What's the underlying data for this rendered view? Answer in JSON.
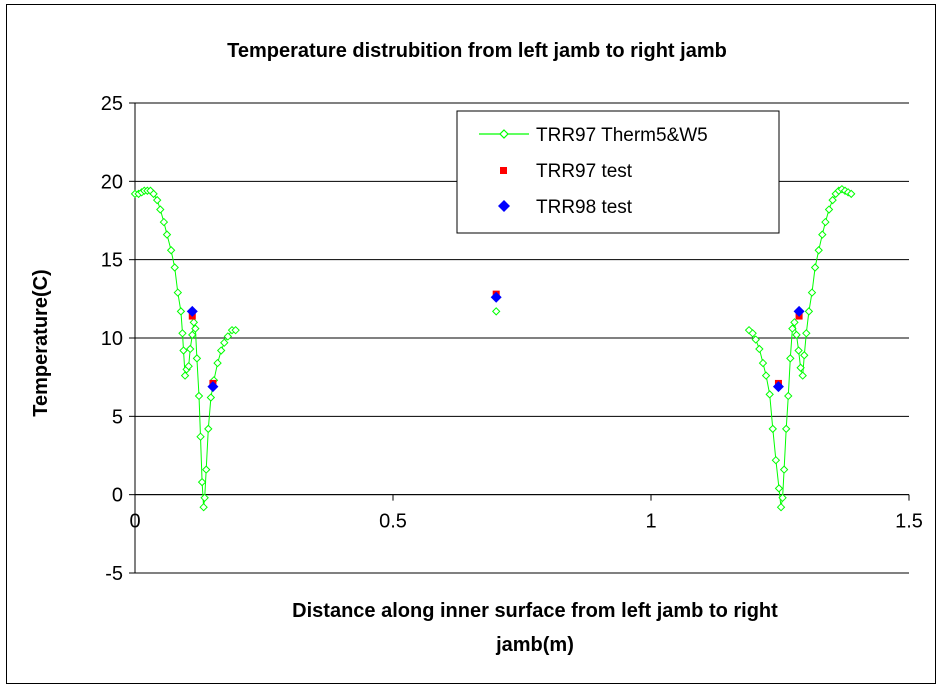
{
  "chart_data": {
    "type": "scatter",
    "title": "Temperature distrubition from left jamb to right jamb",
    "xlabel_line1": "Distance along inner surface from left jamb to right",
    "xlabel_line2": "jamb(m)",
    "ylabel": "Temperature(C)",
    "xlim": [
      0,
      1.5
    ],
    "ylim": [
      -5,
      25
    ],
    "xticks": [
      0,
      0.5,
      1,
      1.5
    ],
    "xtick_labels": [
      "0",
      "0.5",
      "1",
      "1.5"
    ],
    "yticks": [
      -5,
      0,
      5,
      10,
      15,
      20,
      25
    ],
    "ytick_labels": [
      "-5",
      "0",
      "5",
      "10",
      "15",
      "20",
      "25"
    ],
    "grid": "horizontal",
    "legend_position": "top-right",
    "colors": {
      "therm": "#00ff00",
      "trr97": "#ff0000",
      "trr98": "#0000ff"
    },
    "series": [
      {
        "name": "TRR97 Therm5&W5",
        "style": "line-open-diamond",
        "segments": [
          [
            [
              0.0,
              19.2
            ],
            [
              0.007,
              19.2
            ],
            [
              0.013,
              19.3
            ],
            [
              0.018,
              19.4
            ],
            [
              0.024,
              19.4
            ],
            [
              0.03,
              19.4
            ],
            [
              0.036,
              19.2
            ],
            [
              0.043,
              18.8
            ],
            [
              0.049,
              18.2
            ],
            [
              0.056,
              17.4
            ],
            [
              0.062,
              16.6
            ],
            [
              0.07,
              15.6
            ],
            [
              0.077,
              14.5
            ],
            [
              0.083,
              12.9
            ],
            [
              0.089,
              11.7
            ],
            [
              0.092,
              10.3
            ],
            [
              0.094,
              9.2
            ],
            [
              0.097,
              7.6
            ],
            [
              0.1,
              8.0
            ],
            [
              0.104,
              8.2
            ],
            [
              0.107,
              9.3
            ],
            [
              0.111,
              10.2
            ],
            [
              0.114,
              11.0
            ],
            [
              0.117,
              10.6
            ],
            [
              0.12,
              8.7
            ],
            [
              0.124,
              6.3
            ],
            [
              0.127,
              3.7
            ],
            [
              0.13,
              0.8
            ],
            [
              0.133,
              -0.8
            ],
            [
              0.135,
              -0.2
            ],
            [
              0.138,
              1.6
            ],
            [
              0.142,
              4.2
            ],
            [
              0.147,
              6.2
            ],
            [
              0.153,
              7.3
            ],
            [
              0.16,
              8.4
            ],
            [
              0.167,
              9.2
            ],
            [
              0.173,
              9.7
            ],
            [
              0.18,
              10.1
            ],
            [
              0.188,
              10.5
            ],
            [
              0.195,
              10.5
            ]
          ],
          [
            [
              0.7,
              11.7
            ]
          ],
          [
            [
              1.19,
              10.5
            ],
            [
              1.197,
              10.3
            ],
            [
              1.203,
              9.9
            ],
            [
              1.21,
              9.3
            ],
            [
              1.217,
              8.4
            ],
            [
              1.223,
              7.6
            ],
            [
              1.23,
              6.4
            ],
            [
              1.236,
              4.2
            ],
            [
              1.242,
              2.2
            ],
            [
              1.248,
              0.4
            ],
            [
              1.252,
              -0.8
            ],
            [
              1.255,
              -0.2
            ],
            [
              1.258,
              1.6
            ],
            [
              1.262,
              4.2
            ],
            [
              1.266,
              6.3
            ],
            [
              1.27,
              8.7
            ],
            [
              1.274,
              10.6
            ],
            [
              1.278,
              11.0
            ],
            [
              1.282,
              10.2
            ],
            [
              1.286,
              9.2
            ],
            [
              1.29,
              8.1
            ],
            [
              1.294,
              7.6
            ],
            [
              1.297,
              8.9
            ],
            [
              1.301,
              10.3
            ],
            [
              1.306,
              11.7
            ],
            [
              1.312,
              12.9
            ],
            [
              1.318,
              14.5
            ],
            [
              1.325,
              15.6
            ],
            [
              1.332,
              16.6
            ],
            [
              1.338,
              17.4
            ],
            [
              1.345,
              18.2
            ],
            [
              1.352,
              18.8
            ],
            [
              1.358,
              19.2
            ],
            [
              1.364,
              19.4
            ],
            [
              1.37,
              19.5
            ],
            [
              1.376,
              19.4
            ],
            [
              1.382,
              19.3
            ],
            [
              1.388,
              19.2
            ]
          ]
        ]
      },
      {
        "name": "TRR97 test",
        "style": "filled-square",
        "points": [
          [
            0.111,
            11.4
          ],
          [
            0.151,
            7.1
          ],
          [
            0.7,
            12.8
          ],
          [
            1.247,
            7.1
          ],
          [
            1.287,
            11.4
          ]
        ]
      },
      {
        "name": "TRR98 test",
        "style": "filled-diamond",
        "points": [
          [
            0.111,
            11.7
          ],
          [
            0.151,
            6.9
          ],
          [
            0.7,
            12.6
          ],
          [
            1.247,
            6.9
          ],
          [
            1.287,
            11.7
          ]
        ]
      }
    ]
  }
}
